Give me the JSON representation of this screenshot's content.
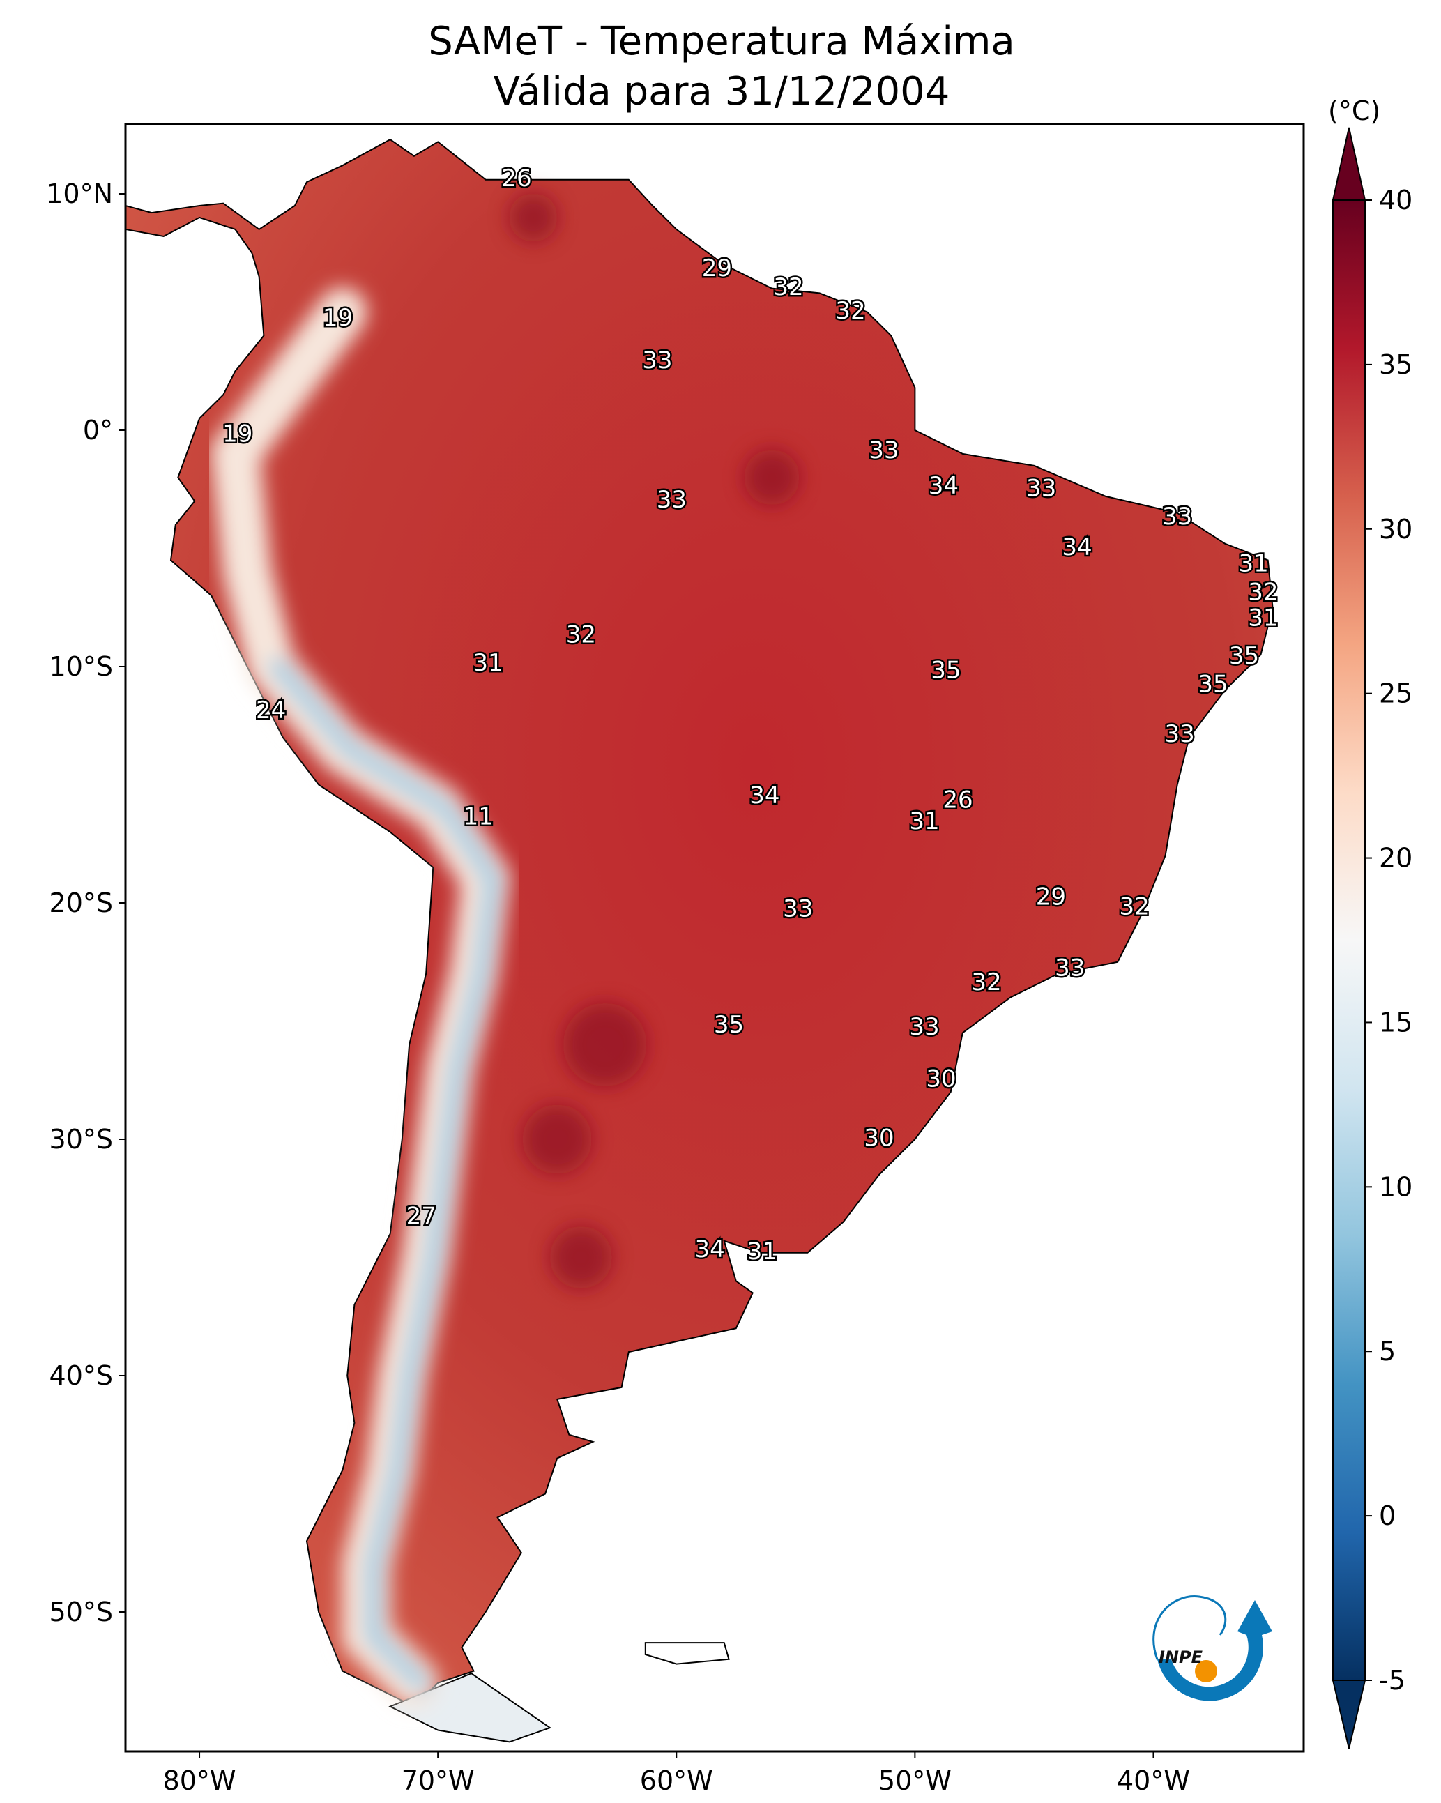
{
  "chart_data": {
    "type": "heatmap",
    "title": "SAMeT - Temperatura Máxima",
    "subtitle": "Válida para 31/12/2004",
    "colorbar": {
      "label": "(°C)",
      "range": [
        -5,
        40
      ],
      "ticks": [
        "-5",
        "0",
        "5",
        "10",
        "15",
        "20",
        "25",
        "30",
        "35",
        "40"
      ],
      "tick_values": [
        -5,
        0,
        5,
        10,
        15,
        20,
        25,
        30,
        35,
        40
      ],
      "colormap": [
        "#053061",
        "#2166ac",
        "#4393c3",
        "#92c5de",
        "#d1e5f0",
        "#f7f7f7",
        "#fddbc7",
        "#f4a582",
        "#d6604d",
        "#b2182b",
        "#67001f"
      ],
      "extend": "both"
    },
    "xlim": [
      -83.1,
      -33.7
    ],
    "ylim": [
      -55.9,
      12.95
    ],
    "x_ticks": [
      {
        "value": -80,
        "label": "80°W"
      },
      {
        "value": -70,
        "label": "70°W"
      },
      {
        "value": -60,
        "label": "60°W"
      },
      {
        "value": -50,
        "label": "50°W"
      },
      {
        "value": -40,
        "label": "40°W"
      }
    ],
    "y_ticks": [
      {
        "value": 10,
        "label": "10°N"
      },
      {
        "value": 0,
        "label": "0°"
      },
      {
        "value": -10,
        "label": "10°S"
      },
      {
        "value": -20,
        "label": "20°S"
      },
      {
        "value": -30,
        "label": "30°S"
      },
      {
        "value": -40,
        "label": "40°S"
      },
      {
        "value": -50,
        "label": "50°S"
      }
    ],
    "annotations": [
      {
        "lon": -66.7,
        "lat": 10.6,
        "text": "26"
      },
      {
        "lon": -74.2,
        "lat": 4.7,
        "text": "19"
      },
      {
        "lon": -58.3,
        "lat": 6.8,
        "text": "29"
      },
      {
        "lon": -55.3,
        "lat": 6.0,
        "text": "32"
      },
      {
        "lon": -52.7,
        "lat": 5.0,
        "text": "32"
      },
      {
        "lon": -60.8,
        "lat": 2.9,
        "text": "33"
      },
      {
        "lon": -78.4,
        "lat": -0.2,
        "text": "19"
      },
      {
        "lon": -51.3,
        "lat": -0.9,
        "text": "33"
      },
      {
        "lon": -48.8,
        "lat": -2.4,
        "text": "34"
      },
      {
        "lon": -60.2,
        "lat": -3.0,
        "text": "33"
      },
      {
        "lon": -44.7,
        "lat": -2.5,
        "text": "33"
      },
      {
        "lon": -39.0,
        "lat": -3.7,
        "text": "33"
      },
      {
        "lon": -43.2,
        "lat": -5.0,
        "text": "34"
      },
      {
        "lon": -35.8,
        "lat": -5.7,
        "text": "31"
      },
      {
        "lon": -35.4,
        "lat": -6.9,
        "text": "32"
      },
      {
        "lon": -35.4,
        "lat": -8.0,
        "text": "31"
      },
      {
        "lon": -64.0,
        "lat": -8.7,
        "text": "32"
      },
      {
        "lon": -67.9,
        "lat": -9.9,
        "text": "31"
      },
      {
        "lon": -48.7,
        "lat": -10.2,
        "text": "35"
      },
      {
        "lon": -36.2,
        "lat": -9.6,
        "text": "35"
      },
      {
        "lon": -37.5,
        "lat": -10.8,
        "text": "35"
      },
      {
        "lon": -77.0,
        "lat": -11.9,
        "text": "24"
      },
      {
        "lon": -38.9,
        "lat": -12.9,
        "text": "33"
      },
      {
        "lon": -56.3,
        "lat": -15.5,
        "text": "34"
      },
      {
        "lon": -48.2,
        "lat": -15.7,
        "text": "26"
      },
      {
        "lon": -68.3,
        "lat": -16.4,
        "text": "11"
      },
      {
        "lon": -49.6,
        "lat": -16.6,
        "text": "31"
      },
      {
        "lon": -44.3,
        "lat": -19.8,
        "text": "29"
      },
      {
        "lon": -40.8,
        "lat": -20.2,
        "text": "32"
      },
      {
        "lon": -54.9,
        "lat": -20.3,
        "text": "33"
      },
      {
        "lon": -43.5,
        "lat": -22.8,
        "text": "33"
      },
      {
        "lon": -47.0,
        "lat": -23.4,
        "text": "32"
      },
      {
        "lon": -57.8,
        "lat": -25.2,
        "text": "35"
      },
      {
        "lon": -49.6,
        "lat": -25.3,
        "text": "33"
      },
      {
        "lon": -48.9,
        "lat": -27.5,
        "text": "30"
      },
      {
        "lon": -51.5,
        "lat": -30.0,
        "text": "30"
      },
      {
        "lon": -70.7,
        "lat": -33.3,
        "text": "27"
      },
      {
        "lon": -58.6,
        "lat": -34.7,
        "text": "34"
      },
      {
        "lon": -56.4,
        "lat": -34.8,
        "text": "31"
      }
    ]
  },
  "logo": {
    "text": "INPE"
  }
}
